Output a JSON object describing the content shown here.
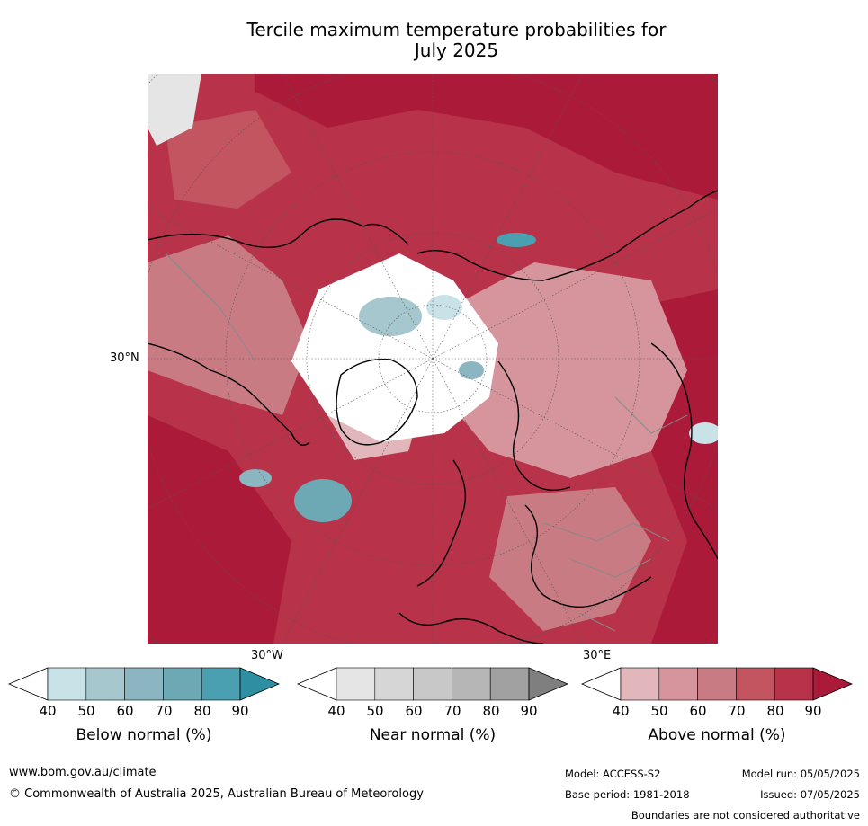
{
  "title_line1": "Tercile maximum temperature probabilities for",
  "title_line2": "July 2025",
  "map": {
    "lat_label": "30°N",
    "lon_label_west": "30°W",
    "lon_label_east": "30°E"
  },
  "colorbars": [
    {
      "label": "Below normal (%)",
      "ticks": [
        "40",
        "50",
        "60",
        "70",
        "80",
        "90"
      ],
      "colors": [
        "#ffffff",
        "#c9e2e8",
        "#a7c7ce",
        "#8bb5c1",
        "#6ca9b5",
        "#4aa0b0",
        "#2e8ea2"
      ]
    },
    {
      "label": "Near normal (%)",
      "ticks": [
        "40",
        "50",
        "60",
        "70",
        "80",
        "90"
      ],
      "colors": [
        "#ffffff",
        "#e5e5e5",
        "#d6d6d6",
        "#c8c8c8",
        "#b6b6b6",
        "#a1a1a1",
        "#7f7f7f"
      ]
    },
    {
      "label": "Above normal (%)",
      "ticks": [
        "40",
        "50",
        "60",
        "70",
        "80",
        "90"
      ],
      "colors": [
        "#ffffff",
        "#e2b7bc",
        "#d6959d",
        "#c97b84",
        "#c2555f",
        "#b83349",
        "#ac1a3a"
      ]
    }
  ],
  "footer": {
    "website": "www.bom.gov.au/climate",
    "copyright": "© Commonwealth of Australia 2025, Australian Bureau of Meteorology",
    "model": "Model: ACCESS-S2",
    "model_run": "Model run: 05/05/2025",
    "base_period": "Base period: 1981-2018",
    "issued": "Issued: 07/05/2025",
    "disclaimer": "Boundaries are not considered authoritative"
  }
}
